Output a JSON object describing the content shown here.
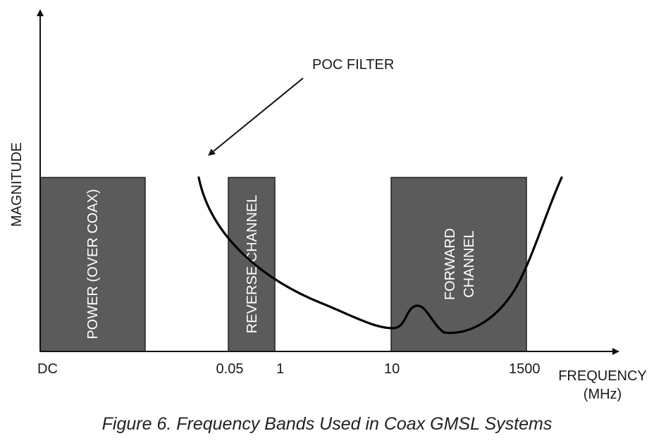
{
  "figure": {
    "caption": "Figure 6. Frequency Bands Used in Coax GMSL Systems",
    "y_axis_label": "MAGNITUDE",
    "x_axis_label_line1": "FREQUENCY",
    "x_axis_label_line2": "(MHz)",
    "ticks": [
      "DC",
      "0.05",
      "1",
      "10",
      "1500"
    ],
    "bands": [
      {
        "name": "POWER (OVER COAX)"
      },
      {
        "name": "REVERSE CHANNEL"
      },
      {
        "name": "FORWARD",
        "name2": "CHANNEL"
      }
    ],
    "annotation": "POC FILTER",
    "colors": {
      "band_fill": "#5b5b5b",
      "axis": "#111111",
      "band_text": "#ffffff"
    }
  }
}
